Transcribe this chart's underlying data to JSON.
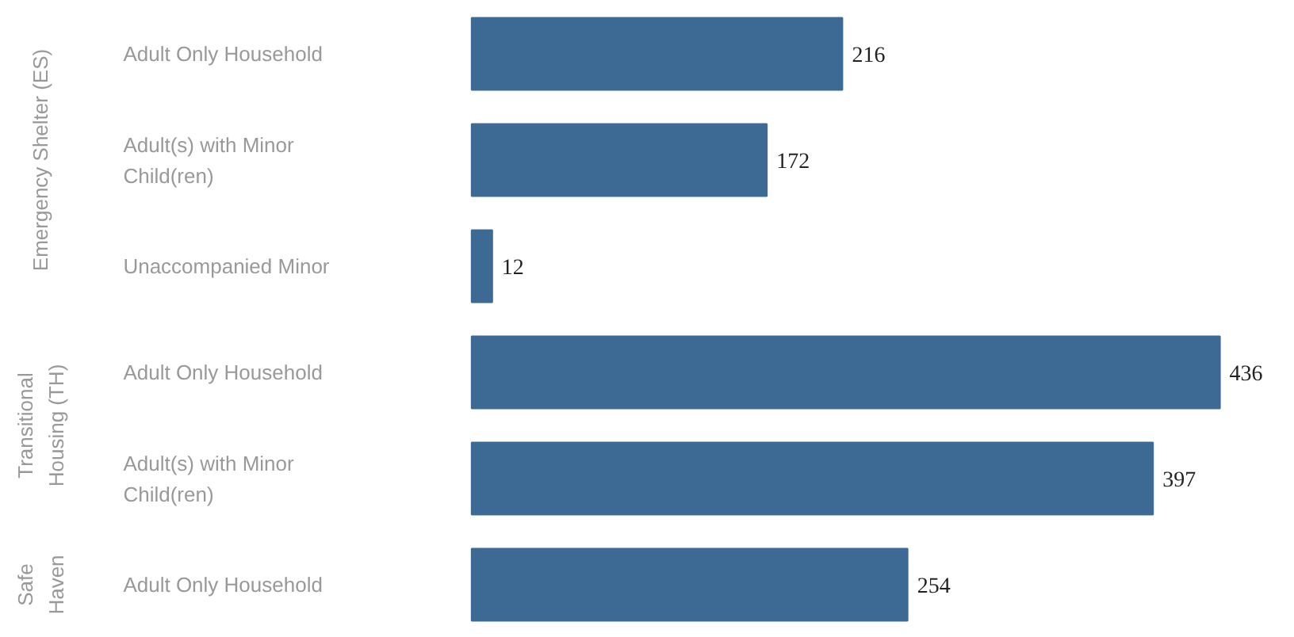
{
  "chart_data": {
    "type": "bar",
    "orientation": "horizontal",
    "categories": [
      "Adult Only Household",
      "Adult(s) with Minor\nChild(ren)",
      "Unaccompanied Minor",
      "Adult Only Household",
      "Adult(s) with Minor\nChild(ren)",
      "Adult Only Household"
    ],
    "values": [
      216,
      172,
      12,
      436,
      397,
      254
    ],
    "color": "#3d6a94",
    "data_labels": true,
    "annotations": [
      "Emergency Shelter (ES)",
      "Transitional\nHousing (TH)",
      "Safe\nHaven"
    ]
  }
}
